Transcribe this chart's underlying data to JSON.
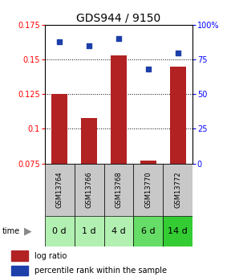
{
  "title": "GDS944 / 9150",
  "samples": [
    "GSM13764",
    "GSM13766",
    "GSM13768",
    "GSM13770",
    "GSM13772"
  ],
  "time_labels": [
    "0 d",
    "1 d",
    "4 d",
    "6 d",
    "14 d"
  ],
  "log_ratio": [
    0.125,
    0.108,
    0.153,
    0.077,
    0.145
  ],
  "percentile_rank": [
    88,
    85,
    90,
    68,
    80
  ],
  "ylim_left": [
    0.075,
    0.175
  ],
  "ylim_right": [
    0,
    100
  ],
  "yticks_left": [
    0.075,
    0.1,
    0.125,
    0.15,
    0.175
  ],
  "yticks_right": [
    0,
    25,
    50,
    75,
    100
  ],
  "bar_color": "#b22222",
  "point_color": "#1c3faa",
  "bar_width": 0.55,
  "sample_bg_color": "#c8c8c8",
  "time_bg_colors": [
    "#b2f0b2",
    "#b2f0b2",
    "#b2f0b2",
    "#66dd66",
    "#33cc33"
  ],
  "legend_log_ratio_color": "#b22222",
  "legend_percentile_color": "#1c3faa",
  "title_fontsize": 10,
  "tick_fontsize": 7,
  "sample_fontsize": 6,
  "time_fontsize": 8
}
